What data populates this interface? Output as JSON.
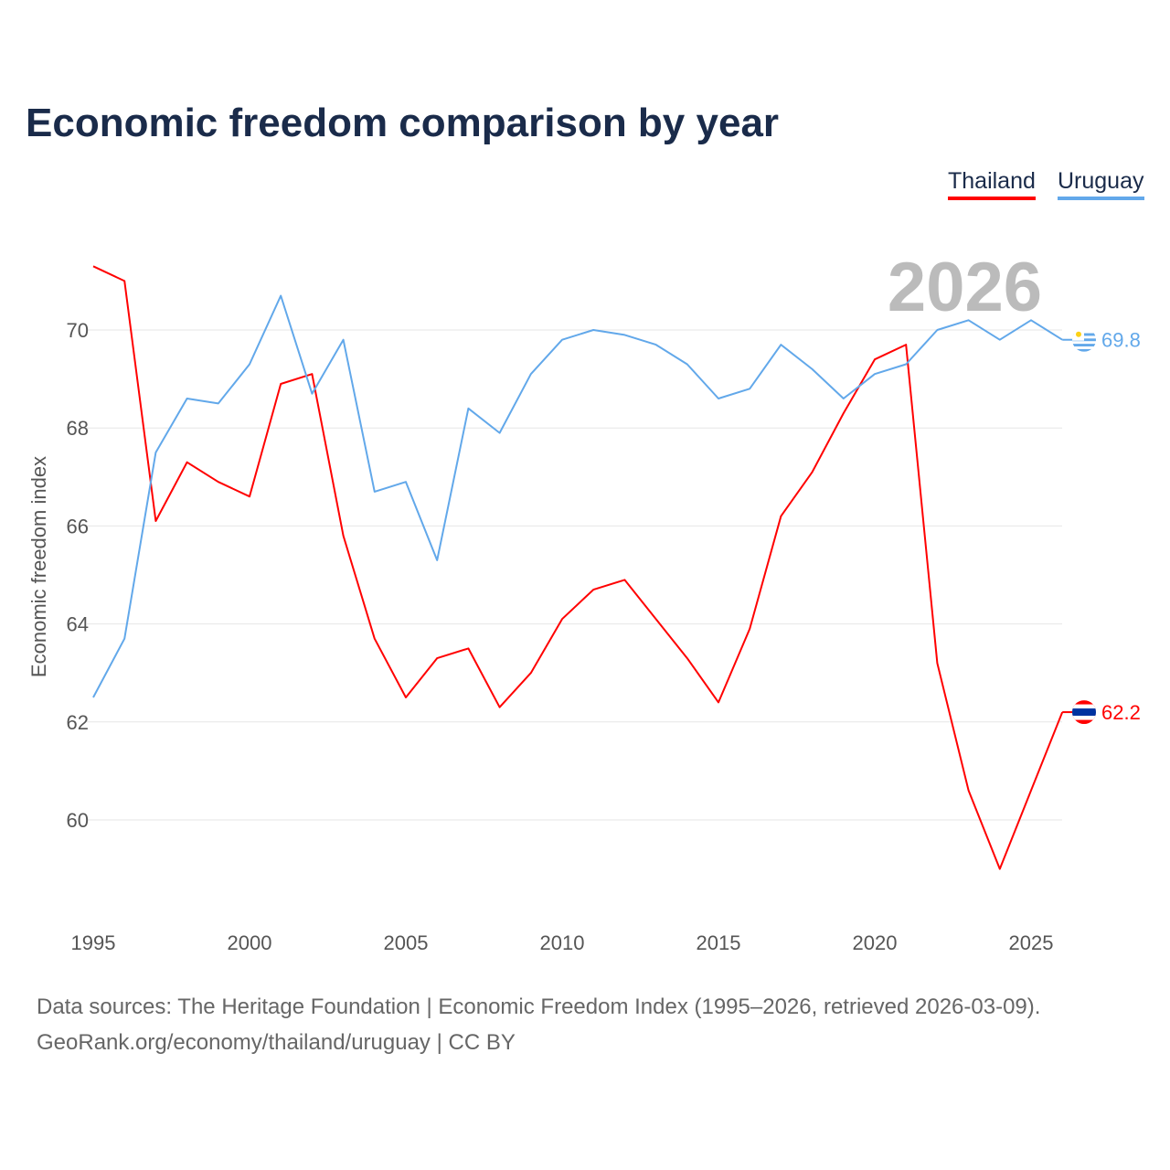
{
  "chart_data": {
    "type": "line",
    "title": "Economic freedom comparison by year",
    "xlabel": "",
    "ylabel": "Economic freedom index",
    "xlim": [
      1995,
      2026
    ],
    "ylim": [
      58.5,
      72
    ],
    "x_ticks": [
      1995,
      2000,
      2005,
      2010,
      2015,
      2020,
      2025
    ],
    "y_ticks": [
      60,
      62,
      64,
      66,
      68,
      70
    ],
    "grid": true,
    "legend_position": "top-right",
    "watermark_year": "2026",
    "x": [
      1995,
      1996,
      1997,
      1998,
      1999,
      2000,
      2001,
      2002,
      2003,
      2004,
      2005,
      2006,
      2007,
      2008,
      2009,
      2010,
      2011,
      2012,
      2013,
      2014,
      2015,
      2016,
      2017,
      2018,
      2019,
      2020,
      2021,
      2022,
      2023,
      2024,
      2025,
      2026
    ],
    "series": [
      {
        "name": "Thailand",
        "color": "#ff0000",
        "end_label": "62.2",
        "values": [
          71.3,
          71.0,
          66.1,
          67.3,
          66.9,
          66.6,
          68.9,
          69.1,
          65.8,
          63.7,
          62.5,
          63.3,
          63.5,
          62.3,
          63.0,
          64.1,
          64.7,
          64.9,
          64.1,
          63.3,
          62.4,
          63.9,
          66.2,
          67.1,
          68.3,
          69.4,
          69.7,
          63.2,
          60.6,
          59.0,
          60.6,
          62.2
        ]
      },
      {
        "name": "Uruguay",
        "color": "#62a8ea",
        "end_label": "69.8",
        "values": [
          62.5,
          63.7,
          67.5,
          68.6,
          68.5,
          69.3,
          70.7,
          68.7,
          69.8,
          66.7,
          66.9,
          65.3,
          68.4,
          67.9,
          69.1,
          69.8,
          70.0,
          69.9,
          69.7,
          69.3,
          68.6,
          68.8,
          69.7,
          69.2,
          68.6,
          69.1,
          69.3,
          70.0,
          70.2,
          69.8,
          70.2,
          69.8
        ]
      }
    ]
  },
  "footer": {
    "line1": "Data sources: The Heritage Foundation | Economic Freedom Index (1995–2026, retrieved 2026-03-09).",
    "line2": "GeoRank.org/economy/thailand/uruguay | CC BY"
  }
}
